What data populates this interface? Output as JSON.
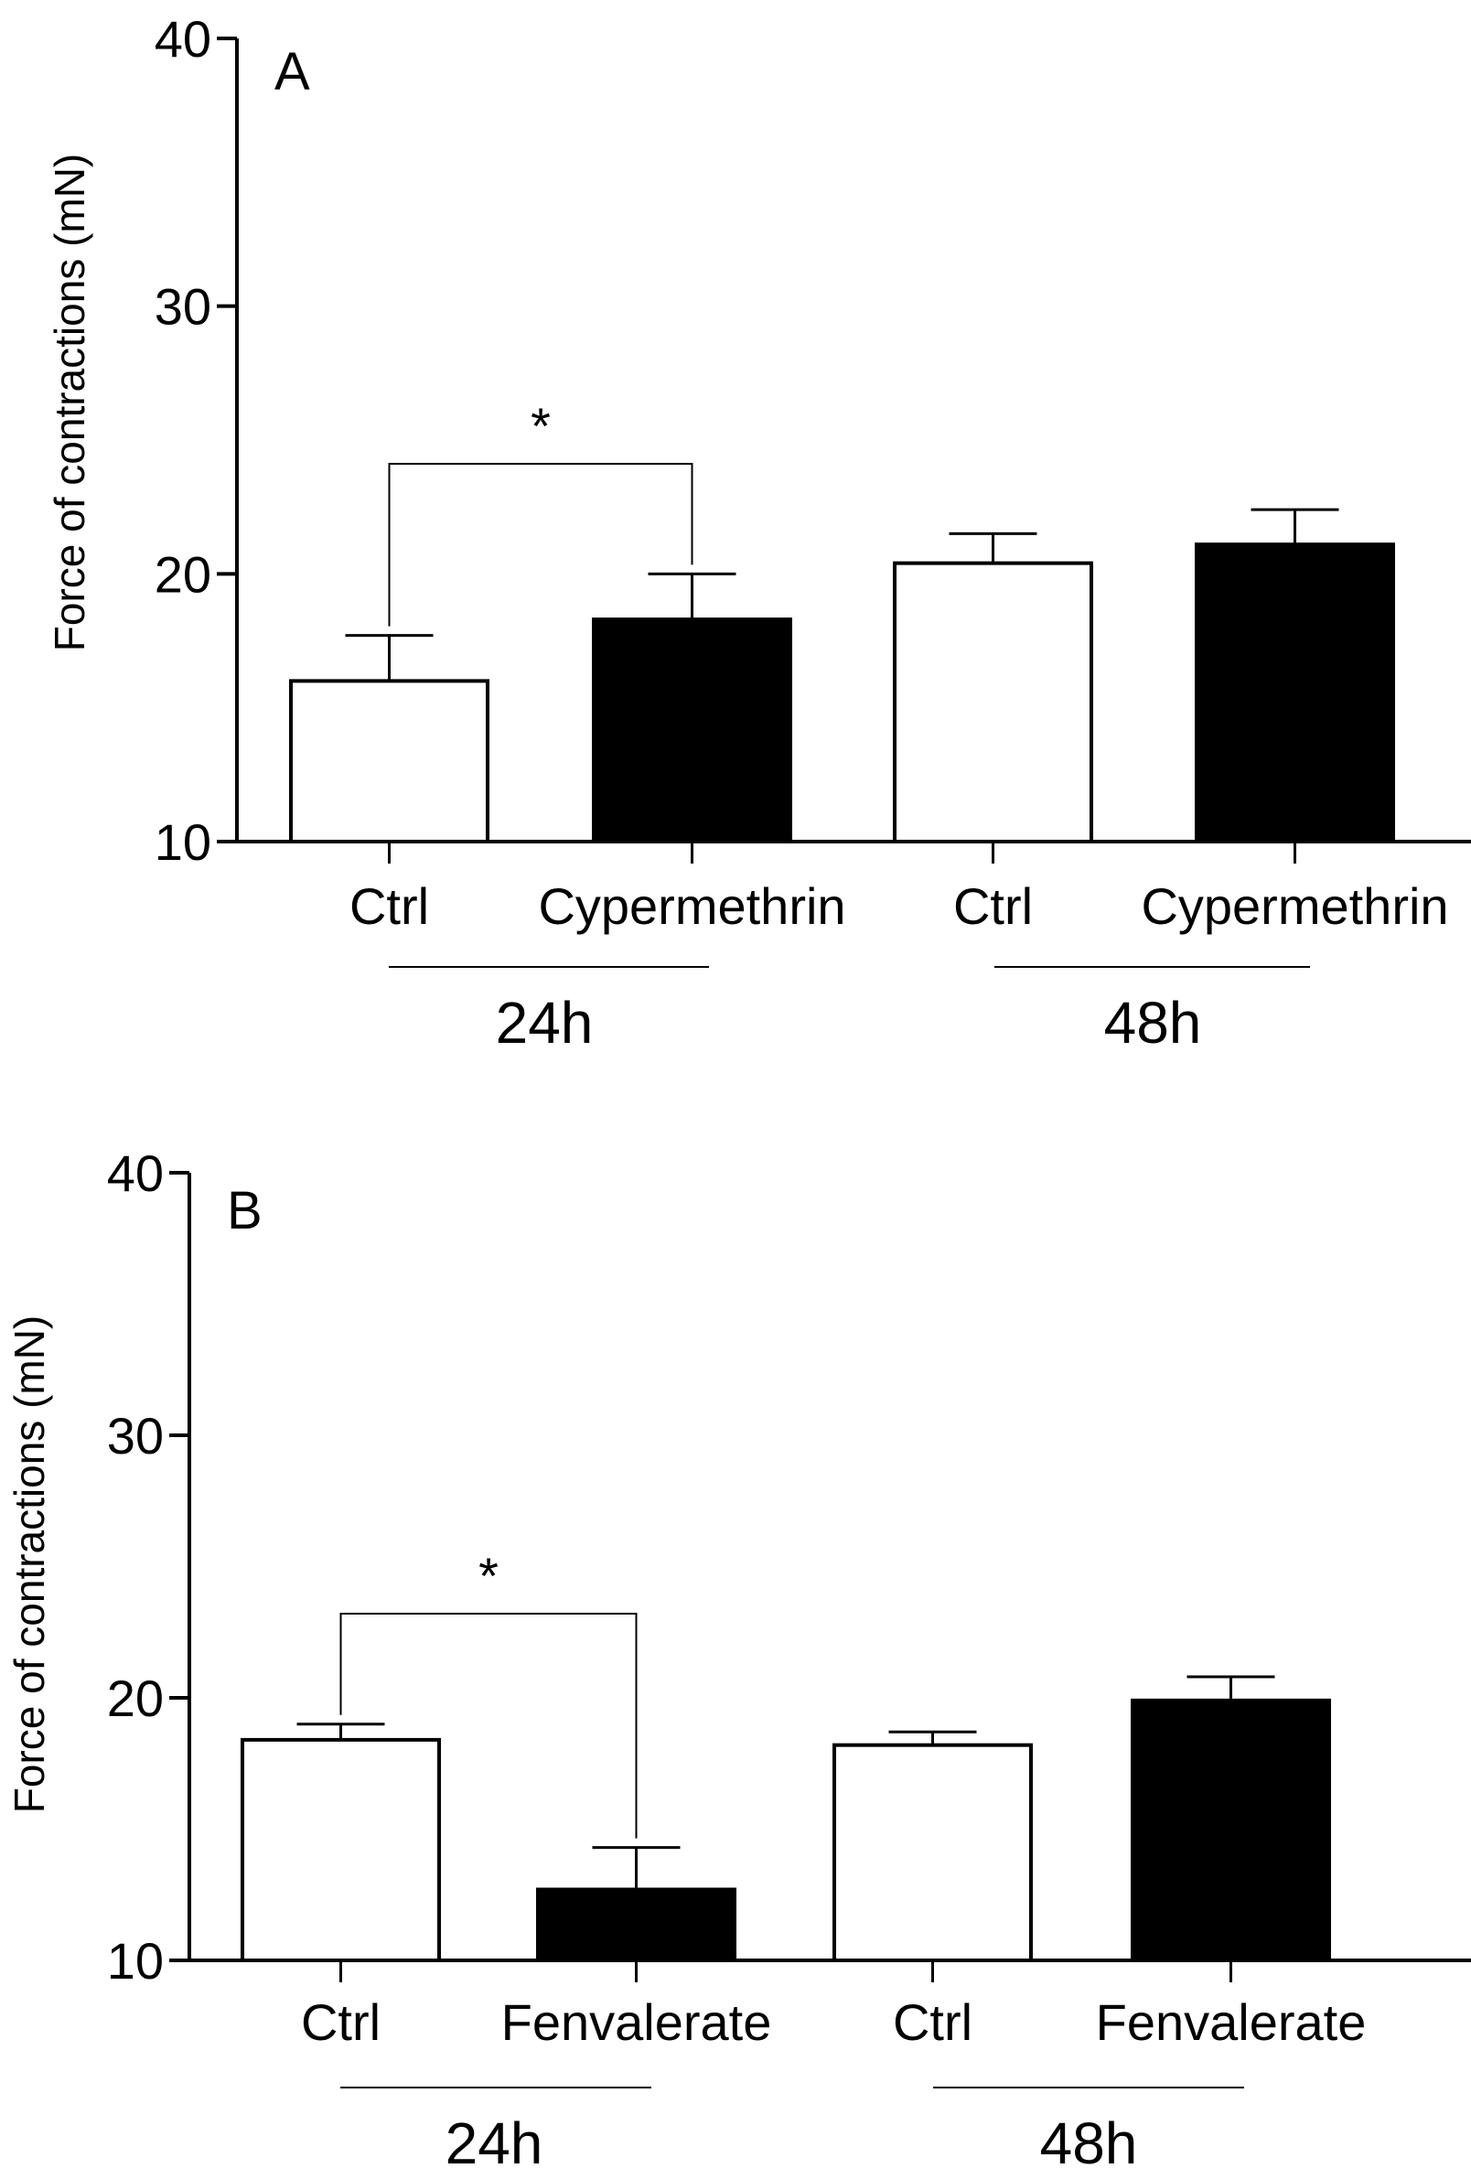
{
  "chart_data": [
    {
      "type": "bar",
      "panel": "A",
      "ylabel": "Force of contractions (mN)",
      "ylim": [
        10,
        40
      ],
      "yticks": [
        "10",
        "20",
        "30",
        "40"
      ],
      "categories": [
        "Ctrl",
        "Cypermethrin",
        "Ctrl",
        "Cypermethrin"
      ],
      "groups": [
        "24h",
        "48h"
      ],
      "values": [
        16.0,
        18.3,
        20.4,
        21.1
      ],
      "errors": [
        1.7,
        1.7,
        1.1,
        1.3
      ],
      "fill": [
        "white",
        "black",
        "white",
        "black"
      ],
      "significance": [
        {
          "from": 0,
          "to": 1,
          "label": "*"
        }
      ]
    },
    {
      "type": "bar",
      "panel": "B",
      "ylabel": "Force of contractions (mN)",
      "ylim": [
        10,
        40
      ],
      "yticks": [
        "10",
        "20",
        "30",
        "40"
      ],
      "categories": [
        "Ctrl",
        "Fenvalerate",
        "Ctrl",
        "Fenvalerate"
      ],
      "groups": [
        "24h",
        "48h"
      ],
      "values": [
        18.4,
        12.7,
        18.2,
        19.9
      ],
      "errors": [
        0.6,
        1.6,
        0.5,
        0.9
      ],
      "fill": [
        "white",
        "black",
        "white",
        "black"
      ],
      "significance": [
        {
          "from": 0,
          "to": 1,
          "label": "*"
        }
      ]
    }
  ],
  "colors": {
    "black": "#000000",
    "white": "#ffffff",
    "axis": "#000000"
  }
}
